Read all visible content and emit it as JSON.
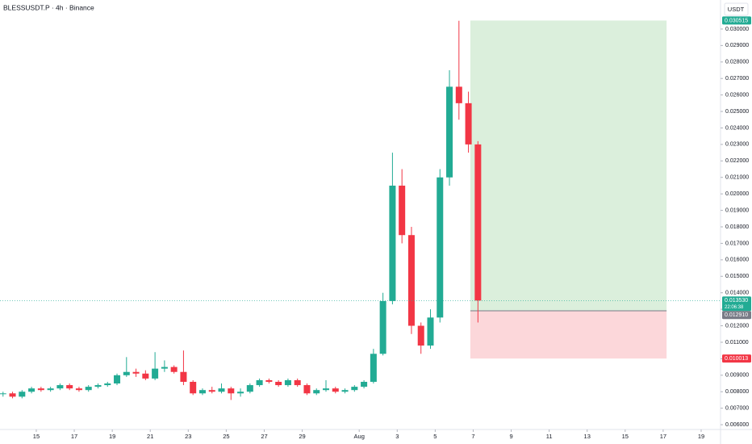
{
  "chart_data": {
    "type": "candlestick",
    "title": "BLESSUSDT.P · 4h · Binance",
    "currency": "USDT",
    "up_color": "#22ab94",
    "down_color": "#f23645",
    "x": [
      13.25,
      13.75,
      14.25,
      14.75,
      15.25,
      15.75,
      16.25,
      16.75,
      17.25,
      17.75,
      18.25,
      18.75,
      19.25,
      19.75,
      20.25,
      20.75,
      21.25,
      21.75,
      22.25,
      22.75,
      23.25,
      23.75,
      24.25,
      24.75,
      25.25,
      25.75,
      26.25,
      26.75,
      27.25,
      27.75,
      28.25,
      28.75,
      29.25,
      29.75,
      30.25,
      30.75,
      31.25,
      31.75,
      32.25,
      32.75,
      33.25,
      33.75,
      34.25,
      34.75,
      35.25,
      35.75,
      36.25,
      36.75,
      37.25,
      37.75,
      38.25
    ],
    "open": [
      0.00785,
      0.0079,
      0.0077,
      0.008,
      0.0082,
      0.0081,
      0.0082,
      0.0084,
      0.0082,
      0.0081,
      0.0083,
      0.0084,
      0.0085,
      0.009,
      0.0092,
      0.0091,
      0.0088,
      0.0094,
      0.0095,
      0.0092,
      0.0086,
      0.0079,
      0.0081,
      0.008,
      0.0082,
      0.0079,
      0.008,
      0.0084,
      0.0087,
      0.0086,
      0.0084,
      0.0087,
      0.0084,
      0.0079,
      0.0081,
      0.0082,
      0.008,
      0.0081,
      0.0083,
      0.0086,
      0.0103,
      0.0135,
      0.0205,
      0.0175,
      0.012,
      0.0108,
      0.0125,
      0.021,
      0.0265,
      0.0255,
      0.023
    ],
    "high": [
      0.008,
      0.008,
      0.0081,
      0.0083,
      0.0083,
      0.0083,
      0.0085,
      0.0085,
      0.0083,
      0.0084,
      0.0085,
      0.0086,
      0.0091,
      0.0101,
      0.0094,
      0.0093,
      0.0104,
      0.0099,
      0.0096,
      0.0105,
      0.0087,
      0.0082,
      0.0083,
      0.0085,
      0.0083,
      0.0082,
      0.0085,
      0.0088,
      0.0088,
      0.0087,
      0.0088,
      0.0088,
      0.0085,
      0.0082,
      0.0087,
      0.0083,
      0.0082,
      0.0084,
      0.0087,
      0.0106,
      0.014,
      0.0225,
      0.0215,
      0.018,
      0.0122,
      0.013,
      0.0215,
      0.0275,
      0.0305,
      0.0262,
      0.0232
    ],
    "low": [
      0.0077,
      0.0076,
      0.0076,
      0.0079,
      0.008,
      0.008,
      0.0081,
      0.0081,
      0.008,
      0.008,
      0.0082,
      0.0083,
      0.0084,
      0.0089,
      0.0089,
      0.0087,
      0.0087,
      0.0092,
      0.0091,
      0.0084,
      0.0078,
      0.0078,
      0.0079,
      0.0079,
      0.0075,
      0.0077,
      0.0079,
      0.0083,
      0.0085,
      0.0083,
      0.0083,
      0.0083,
      0.0078,
      0.0078,
      0.008,
      0.0079,
      0.0079,
      0.008,
      0.0082,
      0.0085,
      0.0102,
      0.0133,
      0.017,
      0.0115,
      0.0103,
      0.0106,
      0.0122,
      0.0205,
      0.0245,
      0.0225,
      0.0122
    ],
    "close": [
      0.0079,
      0.0077,
      0.008,
      0.0082,
      0.0081,
      0.0082,
      0.0084,
      0.0082,
      0.0081,
      0.0083,
      0.0084,
      0.0085,
      0.009,
      0.0092,
      0.0091,
      0.0088,
      0.0094,
      0.0095,
      0.0092,
      0.0086,
      0.0079,
      0.0081,
      0.008,
      0.0082,
      0.0079,
      0.008,
      0.0084,
      0.0087,
      0.0086,
      0.0084,
      0.0087,
      0.0084,
      0.0079,
      0.0081,
      0.0082,
      0.008,
      0.0081,
      0.0083,
      0.0086,
      0.0103,
      0.0135,
      0.0205,
      0.0175,
      0.012,
      0.0108,
      0.0125,
      0.021,
      0.0265,
      0.0255,
      0.023,
      0.01353
    ],
    "xlim": [
      13.09,
      51.02
    ],
    "xticks": [
      15,
      17,
      19,
      21,
      23,
      25,
      27,
      29,
      {
        "value": 32,
        "label": "Aug"
      },
      {
        "value": 34,
        "label": "3"
      },
      {
        "value": 36,
        "label": "5"
      },
      {
        "value": 38,
        "label": "7"
      },
      {
        "value": 40,
        "label": "9"
      },
      {
        "value": 42,
        "label": "11"
      },
      {
        "value": 44,
        "label": "13"
      },
      {
        "value": 46,
        "label": "15"
      },
      {
        "value": 48,
        "label": "17"
      },
      {
        "value": 50,
        "label": "19"
      }
    ],
    "ylim": [
      0.00571,
      0.03176
    ],
    "yticks": [
      {
        "value": 0.006,
        "label": "0.006000"
      },
      {
        "value": 0.007,
        "label": "0.007000"
      },
      {
        "value": 0.008,
        "label": "0.008000"
      },
      {
        "value": 0.009,
        "label": "0.009000"
      },
      {
        "value": 0.01,
        "label": "0.010000"
      },
      {
        "value": 0.011,
        "label": "0.011000"
      },
      {
        "value": 0.012,
        "label": "0.012000"
      },
      {
        "value": 0.013,
        "label": "0.013000"
      },
      {
        "value": 0.014,
        "label": "0.014000"
      },
      {
        "value": 0.015,
        "label": "0.015000"
      },
      {
        "value": 0.016,
        "label": "0.016000"
      },
      {
        "value": 0.017,
        "label": "0.017000"
      },
      {
        "value": 0.018,
        "label": "0.018000"
      },
      {
        "value": 0.019,
        "label": "0.019000"
      },
      {
        "value": 0.02,
        "label": "0.020000"
      },
      {
        "value": 0.021,
        "label": "0.021000"
      },
      {
        "value": 0.022,
        "label": "0.022000"
      },
      {
        "value": 0.023,
        "label": "0.023000"
      },
      {
        "value": 0.024,
        "label": "0.024000"
      },
      {
        "value": 0.025,
        "label": "0.025000"
      },
      {
        "value": 0.026,
        "label": "0.026000"
      },
      {
        "value": 0.027,
        "label": "0.027000"
      },
      {
        "value": 0.028,
        "label": "0.028000"
      },
      {
        "value": 0.029,
        "label": "0.029000"
      },
      {
        "value": 0.03,
        "label": "0.030000"
      }
    ],
    "position": {
      "x": [
        37.85,
        48.18
      ],
      "target": {
        "value": 0.030515,
        "label": "0.030515"
      },
      "entry": {
        "value": 0.01291,
        "label": "0.012910"
      },
      "stop": {
        "value": 0.010013,
        "label": "0.010013"
      }
    },
    "last_price": {
      "value": 0.01353,
      "label": "0.013530",
      "countdown": "22:06:38"
    }
  }
}
